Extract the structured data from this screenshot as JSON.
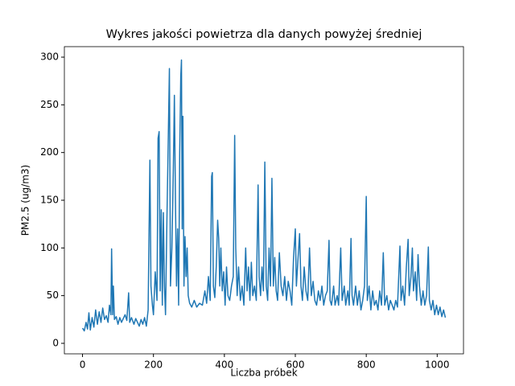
{
  "chart_data": {
    "type": "line",
    "title": "Wykres jakości powietrza dla danych powyżej średniej",
    "x_label": "Liczba próbek",
    "y_label": "PM2.5 (ug/m3)",
    "xlim": [
      -51.15,
      1074.15
    ],
    "ylim": [
      -11,
      311
    ],
    "xticks": [
      0,
      200,
      400,
      600,
      800,
      1000
    ],
    "yticks": [
      0,
      50,
      100,
      150,
      200,
      250,
      300
    ],
    "grid": false,
    "x": [
      0,
      5,
      10,
      14,
      18,
      22,
      27,
      32,
      37,
      42,
      47,
      52,
      57,
      62,
      67,
      72,
      76,
      80,
      82,
      85,
      87,
      90,
      95,
      100,
      105,
      110,
      115,
      120,
      125,
      130,
      133,
      138,
      145,
      150,
      155,
      160,
      165,
      170,
      175,
      180,
      185,
      190,
      193,
      197,
      200,
      205,
      210,
      213,
      216,
      219,
      222,
      225,
      228,
      231,
      234,
      238,
      242,
      245,
      248,
      252,
      256,
      259,
      262,
      265,
      268,
      271,
      274,
      277,
      279,
      281,
      283,
      286,
      289,
      292,
      295,
      298,
      302,
      308,
      315,
      322,
      330,
      338,
      345,
      350,
      355,
      360,
      364,
      366,
      369,
      373,
      377,
      381,
      384,
      387,
      390,
      394,
      398,
      402,
      406,
      410,
      415,
      420,
      425,
      429,
      432,
      436,
      440,
      445,
      450,
      455,
      460,
      464,
      468,
      472,
      476,
      480,
      485,
      490,
      495,
      498,
      502,
      506,
      510,
      514,
      518,
      522,
      526,
      530,
      534,
      538,
      542,
      546,
      550,
      555,
      560,
      565,
      570,
      575,
      580,
      585,
      590,
      595,
      600,
      603,
      607,
      612,
      616,
      620,
      625,
      630,
      635,
      640,
      645,
      650,
      655,
      660,
      665,
      670,
      675,
      680,
      685,
      690,
      695,
      698,
      702,
      708,
      712,
      718,
      722,
      728,
      732,
      738,
      742,
      748,
      752,
      757,
      760,
      764,
      770,
      775,
      780,
      785,
      790,
      795,
      800,
      803,
      808,
      813,
      818,
      823,
      828,
      833,
      838,
      843,
      848,
      852,
      858,
      863,
      868,
      873,
      878,
      883,
      888,
      895,
      898,
      903,
      908,
      913,
      918,
      921,
      926,
      930,
      933,
      938,
      942,
      946,
      950,
      955,
      960,
      965,
      970,
      975,
      978,
      983,
      988,
      993,
      998,
      1003,
      1008,
      1013,
      1018,
      1023
    ],
    "series": [
      {
        "name": "PM2.5",
        "color": "#1f77b4",
        "values": [
          16,
          13,
          22,
          15,
          32,
          14,
          27,
          17,
          35,
          20,
          33,
          22,
          37,
          25,
          29,
          22,
          40,
          30,
          99,
          30,
          60,
          25,
          28,
          20,
          27,
          22,
          26,
          30,
          24,
          53,
          22,
          27,
          20,
          26,
          22,
          18,
          25,
          20,
          27,
          18,
          35,
          192,
          60,
          40,
          30,
          75,
          45,
          215,
          222,
          55,
          140,
          40,
          137,
          60,
          30,
          130,
          220,
          288,
          60,
          100,
          180,
          260,
          150,
          60,
          120,
          40,
          200,
          280,
          297,
          120,
          238,
          60,
          112,
          70,
          100,
          50,
          42,
          38,
          45,
          38,
          42,
          40,
          55,
          42,
          70,
          45,
          175,
          179,
          60,
          48,
          80,
          129,
          110,
          60,
          100,
          55,
          75,
          40,
          80,
          50,
          45,
          60,
          70,
          218,
          100,
          50,
          80,
          45,
          60,
          40,
          100,
          55,
          80,
          45,
          85,
          50,
          60,
          45,
          166,
          70,
          50,
          80,
          55,
          190,
          60,
          45,
          100,
          60,
          173,
          60,
          90,
          55,
          45,
          95,
          60,
          50,
          70,
          45,
          65,
          55,
          40,
          90,
          120,
          60,
          85,
          115,
          60,
          45,
          80,
          55,
          45,
          100,
          50,
          65,
          45,
          40,
          55,
          45,
          60,
          40,
          50,
          55,
          108,
          45,
          40,
          60,
          40,
          50,
          40,
          100,
          45,
          60,
          40,
          55,
          40,
          110,
          50,
          40,
          60,
          40,
          55,
          35,
          45,
          60,
          154,
          45,
          60,
          35,
          55,
          40,
          45,
          35,
          55,
          40,
          95,
          40,
          50,
          35,
          45,
          40,
          35,
          45,
          38,
          102,
          45,
          60,
          40,
          80,
          109,
          50,
          70,
          100,
          55,
          75,
          45,
          93,
          60,
          40,
          55,
          40,
          50,
          101,
          45,
          35,
          45,
          30,
          40,
          30,
          38,
          28,
          35,
          27
        ]
      }
    ]
  }
}
